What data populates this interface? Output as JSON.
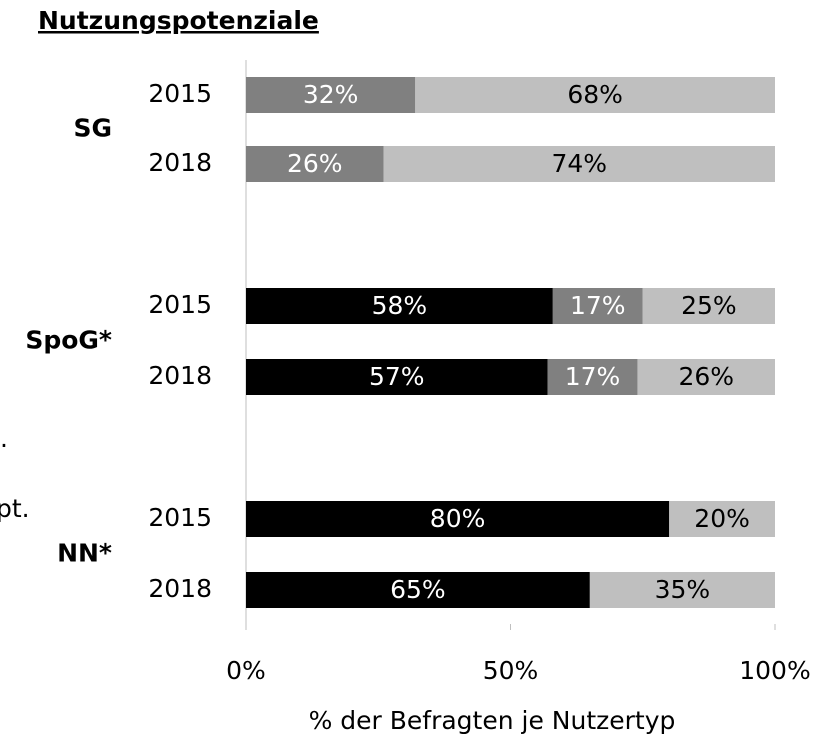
{
  "chart_data": {
    "type": "stacked-barh",
    "title": "Nutzungspotenziale",
    "groups": [
      "SG",
      "SpoG*",
      "NN*"
    ],
    "categories": [
      "2015",
      "2018",
      "2015",
      "2018",
      "2015",
      "2018"
    ],
    "series": [
      {
        "color": "#000000",
        "label_color": "#ffffff",
        "values": [
          null,
          null,
          58,
          57,
          80,
          65
        ],
        "value_labels": [
          null,
          null,
          "58%",
          "57%",
          "80%",
          "65%"
        ]
      },
      {
        "color": "#808080",
        "label_color": "#ffffff",
        "values": [
          32,
          26,
          17,
          17,
          null,
          null
        ],
        "value_labels": [
          "32%",
          "26%",
          "17%",
          "17%",
          null,
          null
        ]
      },
      {
        "color": "#bfbfbf",
        "label_color": "#000000",
        "values": [
          68,
          74,
          25,
          26,
          20,
          35
        ],
        "value_labels": [
          "68%",
          "74%",
          "25%",
          "26%",
          "20%",
          "35%"
        ]
      }
    ],
    "xlim": [
      0,
      100
    ],
    "xticks": [
      {
        "value": 0,
        "label": "0%"
      },
      {
        "value": 50,
        "label": "50%"
      },
      {
        "value": 100,
        "label": "100%"
      }
    ],
    "xlabel": "% der Befragten je Nutzertyp",
    "annotations": [
      ".",
      "pt."
    ]
  }
}
